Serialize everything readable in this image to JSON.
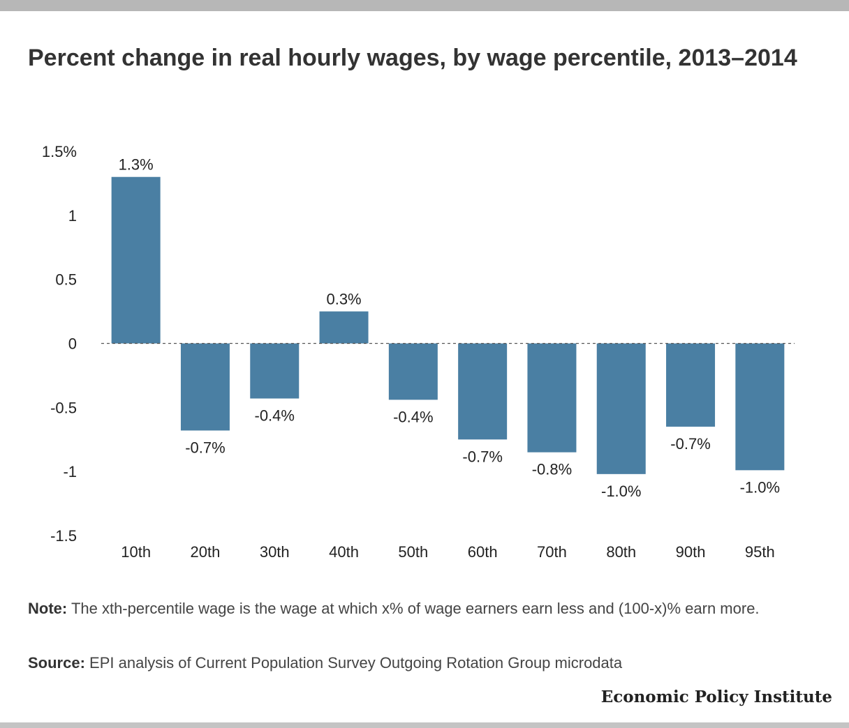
{
  "title": "Percent change in real hourly wages, by wage percentile, 2013–2014",
  "note": {
    "label": "Note:",
    "text": "The xth-percentile wage is the wage at which x% of wage earners earn less and (100-x)% earn more."
  },
  "source": {
    "label": "Source:",
    "text": "EPI analysis of Current Population Survey Outgoing Rotation Group microdata"
  },
  "brand": "Economic Policy Institute",
  "chart_data": {
    "type": "bar",
    "categories": [
      "10th",
      "20th",
      "30th",
      "40th",
      "50th",
      "60th",
      "70th",
      "80th",
      "90th",
      "95th"
    ],
    "values": [
      1.3,
      -0.68,
      -0.43,
      0.25,
      -0.44,
      -0.75,
      -0.85,
      -1.02,
      -0.65,
      -0.99
    ],
    "data_labels": [
      "1.3%",
      "-0.7%",
      "-0.4%",
      "0.3%",
      "-0.4%",
      "-0.7%",
      "-0.8%",
      "-1.0%",
      "-0.7%",
      "-1.0%"
    ],
    "y_ticks": [
      1.5,
      1,
      0.5,
      0,
      -0.5,
      -1,
      -1.5
    ],
    "y_tick_labels": [
      "1.5%",
      "1",
      "0.5",
      "0",
      "-0.5",
      "-1",
      "-1.5"
    ],
    "ylim": [
      -1.5,
      1.5
    ],
    "title": "Percent change in real hourly wages, by wage percentile, 2013–2014",
    "xlabel": "",
    "ylabel": "",
    "bar_color": "#4a7fa3",
    "zero_line": "dashed",
    "grid": false,
    "legend": "none"
  }
}
